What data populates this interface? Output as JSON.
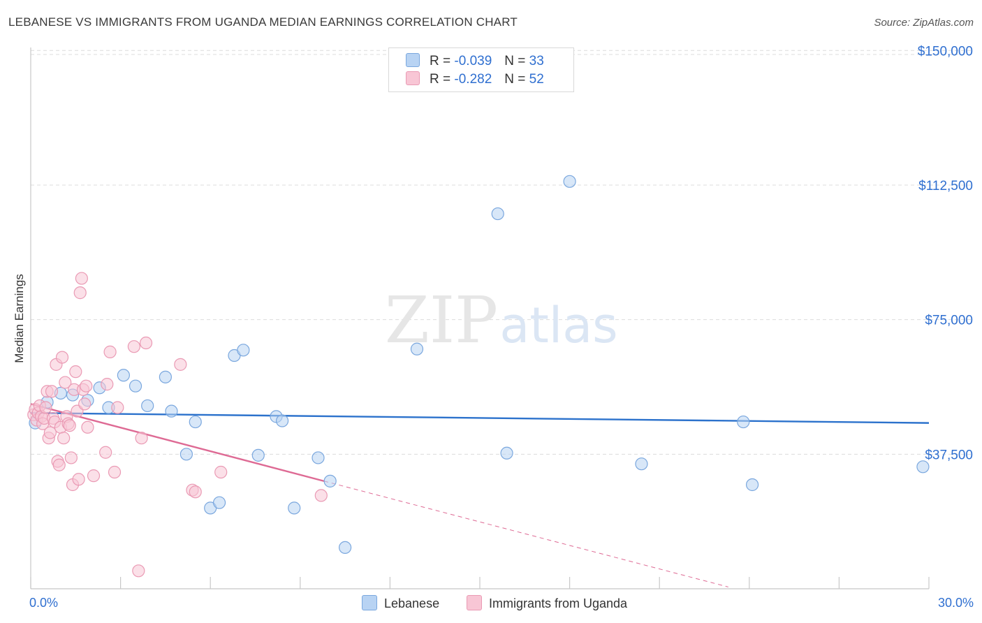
{
  "header": {
    "title": "LEBANESE VS IMMIGRANTS FROM UGANDA MEDIAN EARNINGS CORRELATION CHART",
    "source": "Source: ZipAtlas.com"
  },
  "watermark": {
    "zip": "ZIP",
    "atlas": "atlas"
  },
  "legend": {
    "r_label": "R =",
    "n_label": "N =",
    "series": [
      {
        "name": "Lebanese",
        "r": "-0.039",
        "n": "33"
      },
      {
        "name": "Immigrants from Uganda",
        "r": "-0.282",
        "n": "52"
      }
    ]
  },
  "colors": {
    "lebanese_fill": "#b8d3f3",
    "lebanese_stroke": "#7aa7de",
    "lebanese_line": "#2c72cc",
    "uganda_fill": "#f8c6d5",
    "uganda_stroke": "#ea9ab4",
    "uganda_line": "#de6a94",
    "tick_text": "#2f6fd0",
    "grid": "#dcdcdc"
  },
  "chart_data": {
    "type": "scatter",
    "title": "LEBANESE VS IMMIGRANTS FROM UGANDA MEDIAN EARNINGS CORRELATION CHART",
    "xlabel": "",
    "ylabel": "Median Earnings",
    "xlim": [
      0,
      30
    ],
    "ylim": [
      0,
      152000
    ],
    "x_tick_labels": [
      "0.0%",
      "30.0%"
    ],
    "y_ticks": [
      37500,
      75000,
      112500,
      150000
    ],
    "y_tick_labels": [
      "$37,500",
      "$75,000",
      "$112,500",
      "$150,000"
    ],
    "grid": true,
    "series": [
      {
        "name": "Lebanese",
        "r": -0.039,
        "n": 33,
        "trend": {
          "x": [
            0,
            30
          ],
          "y": [
            49000,
            46200
          ]
        },
        "points": [
          [
            0.15,
            46200
          ],
          [
            0.55,
            52000
          ],
          [
            1.0,
            54500
          ],
          [
            1.4,
            54000
          ],
          [
            1.9,
            52500
          ],
          [
            2.3,
            56000
          ],
          [
            2.6,
            50500
          ],
          [
            3.1,
            59500
          ],
          [
            3.5,
            56500
          ],
          [
            3.9,
            51000
          ],
          [
            4.5,
            59000
          ],
          [
            4.7,
            49500
          ],
          [
            5.2,
            37500
          ],
          [
            5.5,
            46500
          ],
          [
            6.0,
            22500
          ],
          [
            6.3,
            24000
          ],
          [
            6.8,
            65000
          ],
          [
            7.1,
            66500
          ],
          [
            7.6,
            37200
          ],
          [
            8.2,
            48000
          ],
          [
            8.4,
            46800
          ],
          [
            8.8,
            22500
          ],
          [
            9.6,
            36500
          ],
          [
            10.0,
            30000
          ],
          [
            10.5,
            11500
          ],
          [
            12.9,
            66800
          ],
          [
            15.6,
            104500
          ],
          [
            15.9,
            37800
          ],
          [
            18.0,
            113500
          ],
          [
            20.4,
            34800
          ],
          [
            23.8,
            46500
          ],
          [
            24.1,
            29000
          ],
          [
            29.8,
            34000
          ]
        ]
      },
      {
        "name": "Immigrants from Uganda",
        "r": -0.282,
        "n": 52,
        "trend": {
          "x": [
            0,
            9.8
          ],
          "y": [
            51500,
            30000
          ]
        },
        "trend_dashed": {
          "x": [
            9.8,
            23.3
          ],
          "y": [
            30000,
            500
          ]
        },
        "points": [
          [
            0.1,
            48500
          ],
          [
            0.15,
            50000
          ],
          [
            0.2,
            47000
          ],
          [
            0.25,
            49000
          ],
          [
            0.3,
            51000
          ],
          [
            0.35,
            48000
          ],
          [
            0.4,
            46000
          ],
          [
            0.45,
            47500
          ],
          [
            0.5,
            50500
          ],
          [
            0.55,
            55000
          ],
          [
            0.6,
            42000
          ],
          [
            0.65,
            43500
          ],
          [
            0.7,
            55000
          ],
          [
            0.75,
            47500
          ],
          [
            0.8,
            46500
          ],
          [
            0.85,
            62500
          ],
          [
            0.9,
            35500
          ],
          [
            0.95,
            34500
          ],
          [
            1.0,
            45000
          ],
          [
            1.05,
            64500
          ],
          [
            1.1,
            42000
          ],
          [
            1.15,
            57500
          ],
          [
            1.2,
            48000
          ],
          [
            1.25,
            46000
          ],
          [
            1.3,
            45500
          ],
          [
            1.35,
            36500
          ],
          [
            1.4,
            29000
          ],
          [
            1.45,
            55500
          ],
          [
            1.5,
            60500
          ],
          [
            1.55,
            49500
          ],
          [
            1.6,
            30500
          ],
          [
            1.65,
            82500
          ],
          [
            1.7,
            86500
          ],
          [
            1.75,
            55500
          ],
          [
            1.8,
            51500
          ],
          [
            1.85,
            56500
          ],
          [
            1.9,
            45000
          ],
          [
            2.1,
            31500
          ],
          [
            2.5,
            38000
          ],
          [
            2.55,
            57000
          ],
          [
            2.65,
            66000
          ],
          [
            2.8,
            32500
          ],
          [
            2.9,
            50500
          ],
          [
            3.45,
            67500
          ],
          [
            3.6,
            5000
          ],
          [
            3.7,
            42000
          ],
          [
            3.85,
            68500
          ],
          [
            5.0,
            62500
          ],
          [
            5.4,
            27500
          ],
          [
            5.5,
            27000
          ],
          [
            6.35,
            32500
          ],
          [
            9.7,
            26000
          ]
        ]
      }
    ]
  }
}
